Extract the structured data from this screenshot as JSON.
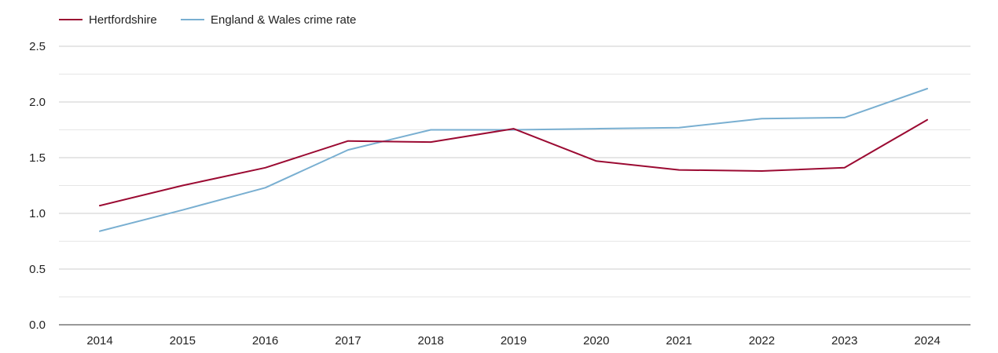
{
  "chart_data": {
    "type": "line",
    "title": "",
    "xlabel": "",
    "ylabel": "",
    "categories": [
      "2014",
      "2015",
      "2016",
      "2017",
      "2018",
      "2019",
      "2020",
      "2021",
      "2022",
      "2023",
      "2024"
    ],
    "ylim": [
      0,
      2.5
    ],
    "yticks": [
      "0.0",
      "0.5",
      "1.0",
      "1.5",
      "2.0",
      "2.5"
    ],
    "grid": true,
    "legend_position": "top-left",
    "series": [
      {
        "name": "Hertfordshire",
        "color": "#9b0a32",
        "values": [
          1.07,
          1.25,
          1.41,
          1.65,
          1.64,
          1.76,
          1.47,
          1.39,
          1.38,
          1.41,
          1.84
        ]
      },
      {
        "name": "England & Wales crime rate",
        "color": "#79afd1",
        "values": [
          0.84,
          1.03,
          1.23,
          1.57,
          1.75,
          1.75,
          1.76,
          1.77,
          1.85,
          1.86,
          2.12
        ]
      }
    ]
  }
}
